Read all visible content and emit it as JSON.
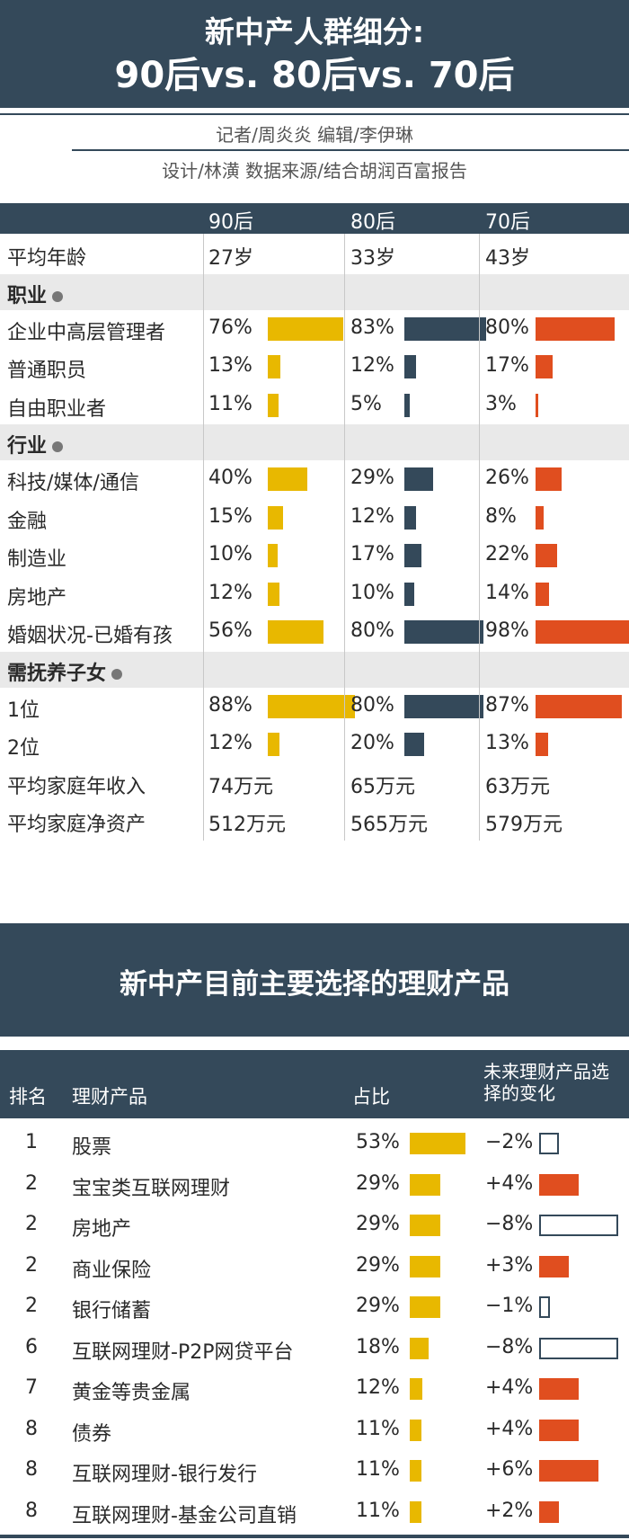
{
  "header": {
    "title_line1": "新中产人群细分:",
    "title_line2": "90后vs. 80后vs. 70后",
    "credit_line1": "记者/周炎炎     编辑/李伊琳",
    "credit_line2": "设计/林潢   数据来源/结合胡润百富报告"
  },
  "colors": {
    "c90": "#e8b800",
    "c80": "#34495a",
    "c70": "#e04e1f",
    "dark": "#34495a"
  },
  "chart_data": [
    {
      "type": "bar",
      "columns": [
        "90后",
        "80后",
        "70后"
      ],
      "rows": [
        {
          "label": "平均年龄",
          "values": [
            "27岁",
            "33岁",
            "43岁"
          ]
        },
        {
          "label": "职业",
          "section": true
        },
        {
          "label": "企业中高层管理者",
          "values": [
            76,
            83,
            80
          ]
        },
        {
          "label": "普通职员",
          "values": [
            13,
            12,
            17
          ]
        },
        {
          "label": "自由职业者",
          "values": [
            11,
            5,
            3
          ]
        },
        {
          "label": "行业",
          "section": true
        },
        {
          "label": "科技/媒体/通信",
          "values": [
            40,
            29,
            26
          ]
        },
        {
          "label": "金融",
          "values": [
            15,
            12,
            8
          ]
        },
        {
          "label": "制造业",
          "values": [
            10,
            17,
            22
          ]
        },
        {
          "label": "房地产",
          "values": [
            12,
            10,
            14
          ]
        },
        {
          "label": "婚姻状况-已婚有孩",
          "values": [
            56,
            80,
            98
          ]
        },
        {
          "label": "需抚养子女",
          "section": true
        },
        {
          "label": "1位",
          "values": [
            88,
            80,
            87
          ]
        },
        {
          "label": "2位",
          "values": [
            12,
            20,
            13
          ]
        },
        {
          "label": "平均家庭年收入",
          "values": [
            "74万元",
            "65万元",
            "63万元"
          ]
        },
        {
          "label": "平均家庭净资产",
          "values": [
            "512万元",
            "565万元",
            "579万元"
          ]
        }
      ],
      "unit": "%"
    },
    {
      "type": "table",
      "title": "新中产目前主要选择的理财产品",
      "columns": [
        "排名",
        "理财产品",
        "占比",
        "未来理财产品选择的变化"
      ],
      "rows": [
        {
          "rank": "1",
          "product": "股票",
          "share": 53,
          "change": -2
        },
        {
          "rank": "2",
          "product": "宝宝类互联网理财",
          "share": 29,
          "change": 4
        },
        {
          "rank": "2",
          "product": "房地产",
          "share": 29,
          "change": -8
        },
        {
          "rank": "2",
          "product": "商业保险",
          "share": 29,
          "change": 3
        },
        {
          "rank": "2",
          "product": "银行储蓄",
          "share": 29,
          "change": -1
        },
        {
          "rank": "6",
          "product": "互联网理财-P2P网贷平台",
          "share": 18,
          "change": -8
        },
        {
          "rank": "7",
          "product": "黄金等贵金属",
          "share": 12,
          "change": 4
        },
        {
          "rank": "8",
          "product": "债券",
          "share": 11,
          "change": 4
        },
        {
          "rank": "8",
          "product": "互联网理财-银行发行",
          "share": 11,
          "change": 6
        },
        {
          "rank": "8",
          "product": "互联网理财-基金公司直销",
          "share": 11,
          "change": 2
        }
      ]
    }
  ]
}
